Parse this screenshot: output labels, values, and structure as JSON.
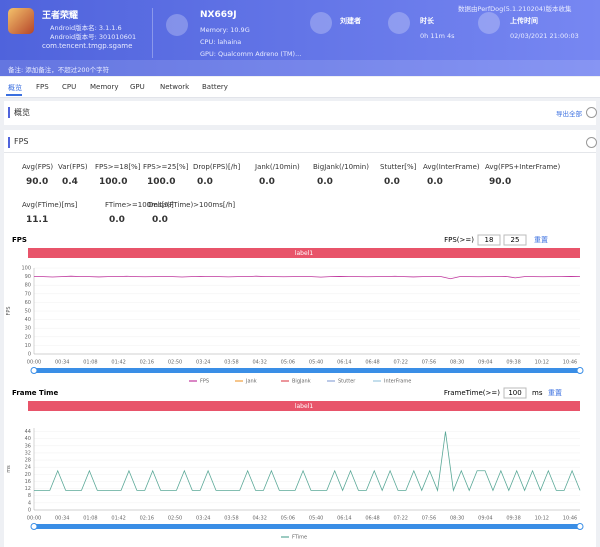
{
  "header": {
    "app_name": "王者荣耀",
    "android_version": "Android版本名: 3.1.1.6",
    "android_code": "Android版本号: 301010601",
    "package": "com.tencent.tmgp.sgame",
    "device": "NX669J",
    "memory": "Memory: 10.9G",
    "cpu": "CPU: lahaina",
    "gpu": "GPU: Qualcomm Adreno (TM)...",
    "user": "刘建者",
    "duration_label": "时长",
    "duration": "0h 11m 4s",
    "upload_label": "上传时间",
    "upload_time": "02/03/2021 21:00:03",
    "source": "数据由PerfDog(5.1.210204)版本收集",
    "remark": "备注: 添加备注，不超过200个字符"
  },
  "tabs": [
    "概览",
    "FPS",
    "CPU",
    "Memory",
    "GPU",
    "Network",
    "Battery"
  ],
  "overview": {
    "title": "概览",
    "export": "导出全部"
  },
  "fps_section": {
    "title": "FPS",
    "stats": [
      {
        "label": "Avg(FPS)",
        "value": "90.0"
      },
      {
        "label": "Var(FPS)",
        "value": "0.4"
      },
      {
        "label": "FPS>=18[%]",
        "value": "100.0"
      },
      {
        "label": "FPS>=25[%]",
        "value": "100.0"
      },
      {
        "label": "Drop(FPS)[/h]",
        "value": "0.0"
      },
      {
        "label": "Jank(/10min)",
        "value": "0.0"
      },
      {
        "label": "BigJank(/10min)",
        "value": "0.0"
      },
      {
        "label": "Stutter[%]",
        "value": "0.0"
      },
      {
        "label": "Avg(InterFrame)",
        "value": "0.0"
      },
      {
        "label": "Avg(FPS+InterFrame)",
        "value": "90.0"
      },
      {
        "label": "Avg(FTime)[ms]",
        "value": "11.1"
      },
      {
        "label": "FTime>=100ms[%]",
        "value": "0.0"
      },
      {
        "label": "Delta(FTime)>100ms[/h]",
        "value": "0.0"
      }
    ]
  },
  "fps_chart": {
    "title": "FPS",
    "filter_label": "FPS(>=)",
    "filter_values": [
      "18",
      "25"
    ],
    "reset": "重置",
    "band": "label1",
    "y_label": "FPS",
    "ylim": [
      0,
      100
    ],
    "yticks": [
      0,
      10,
      20,
      30,
      40,
      50,
      60,
      70,
      80,
      90,
      100
    ],
    "xticks": [
      "00:00",
      "00:34",
      "01:08",
      "01:42",
      "02:16",
      "02:50",
      "03:24",
      "03:58",
      "04:32",
      "05:06",
      "05:40",
      "06:14",
      "06:48",
      "07:22",
      "07:56",
      "08:30",
      "09:04",
      "09:38",
      "10:12",
      "10:46"
    ],
    "series": [
      {
        "name": "FPS",
        "color": "#c0369e",
        "values": [
          90,
          90,
          89.5,
          90,
          90.5,
          90,
          90,
          89.6,
          90,
          90,
          90.4,
          90,
          89.8,
          90,
          90,
          90,
          89.5,
          90,
          90.3,
          90,
          90,
          89.7,
          90,
          90,
          90.5,
          90,
          90,
          89.8,
          90,
          90,
          90,
          89.4,
          90,
          90.2,
          90,
          90,
          89.8,
          90,
          90,
          90.4,
          90,
          89.6,
          90,
          90,
          90,
          87.5,
          90,
          90,
          89.8,
          90,
          90,
          90.3,
          88.5,
          90,
          90,
          89.8,
          90,
          90,
          90.2,
          90
        ]
      },
      {
        "name": "Jank",
        "color": "#f0a040",
        "values": []
      },
      {
        "name": "BigJank",
        "color": "#e0505a",
        "values": []
      },
      {
        "name": "Stutter",
        "color": "#8fa6d8",
        "values": []
      },
      {
        "name": "InterFrame",
        "color": "#9cc8e0",
        "values": []
      }
    ]
  },
  "ft_chart": {
    "title": "Frame Time",
    "filter_label": "FrameTime(>=)",
    "filter_value": "100",
    "unit": "ms",
    "reset": "重置",
    "band": "label1",
    "y_label": "ms",
    "ylim": [
      0,
      46
    ],
    "yticks": [
      0,
      4,
      8,
      12,
      16,
      20,
      24,
      28,
      32,
      36,
      40,
      44
    ],
    "xticks": [
      "00:00",
      "00:34",
      "01:08",
      "01:42",
      "02:16",
      "02:50",
      "03:24",
      "03:58",
      "04:32",
      "05:06",
      "05:40",
      "06:14",
      "06:48",
      "07:22",
      "07:56",
      "08:30",
      "09:04",
      "09:38",
      "10:12",
      "10:46"
    ],
    "series": [
      {
        "name": "FTime",
        "color": "#5aa897",
        "values": [
          11,
          11,
          11,
          22,
          11,
          11,
          11,
          22,
          11,
          11,
          11,
          11,
          22,
          11,
          11,
          22,
          11,
          11,
          11,
          22,
          11,
          11,
          22,
          11,
          11,
          11,
          11,
          22,
          11,
          11,
          22,
          11,
          11,
          11,
          22,
          11,
          11,
          11,
          22,
          11,
          22,
          11,
          11,
          22,
          11,
          22,
          11,
          11,
          22,
          11,
          22,
          11,
          44,
          11,
          22,
          11,
          22,
          22,
          11,
          22,
          11,
          22,
          11,
          22,
          11,
          22,
          11,
          11,
          22,
          11
        ]
      }
    ]
  }
}
